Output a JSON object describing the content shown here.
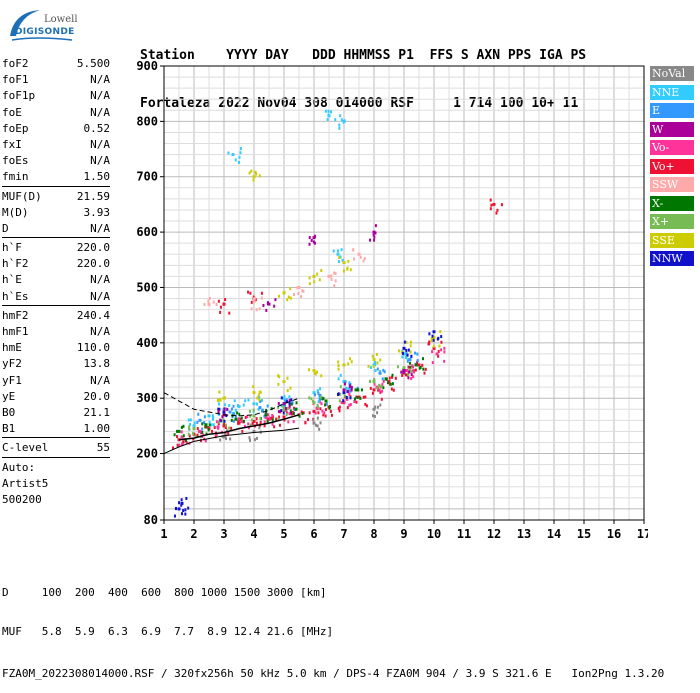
{
  "logo": {
    "top": "Lowell",
    "main": "DIGISONDE"
  },
  "header": {
    "line1": "Station    YYYY DAY   DDD HHMMSS P1  FFS S AXN PPS IGA PS",
    "line2": "Fortaleza 2022 Nov04 308 014000 RSF     1 714 100 10+ 11"
  },
  "params": {
    "group1": [
      {
        "k": "foF2",
        "v": "5.500"
      },
      {
        "k": "foF1",
        "v": "N/A"
      },
      {
        "k": "foF1p",
        "v": "N/A"
      },
      {
        "k": "foE",
        "v": "N/A"
      },
      {
        "k": "foEp",
        "v": "0.52"
      },
      {
        "k": "fxI",
        "v": "N/A"
      },
      {
        "k": "foEs",
        "v": "N/A"
      },
      {
        "k": "fmin",
        "v": "1.50"
      }
    ],
    "group2": [
      {
        "k": "MUF(D)",
        "v": "21.59"
      },
      {
        "k": "M(D)",
        "v": "3.93"
      },
      {
        "k": "D",
        "v": "N/A"
      }
    ],
    "group3": [
      {
        "k": "h`F",
        "v": "220.0"
      },
      {
        "k": "h`F2",
        "v": "220.0"
      },
      {
        "k": "h`E",
        "v": "N/A"
      },
      {
        "k": "h`Es",
        "v": "N/A"
      }
    ],
    "group4": [
      {
        "k": "hmF2",
        "v": "240.4"
      },
      {
        "k": "hmF1",
        "v": "N/A"
      },
      {
        "k": "hmE",
        "v": "110.0"
      },
      {
        "k": "yF2",
        "v": "13.8"
      },
      {
        "k": "yF1",
        "v": "N/A"
      },
      {
        "k": "yE",
        "v": "20.0"
      },
      {
        "k": "B0",
        "v": "21.1"
      },
      {
        "k": "B1",
        "v": "1.00"
      }
    ],
    "group5": [
      {
        "k": "C-level",
        "v": "55"
      }
    ],
    "auto": [
      "Auto:",
      "Artist5",
      "500200"
    ]
  },
  "legend": [
    {
      "label": "NoVal",
      "color": "#888888"
    },
    {
      "label": "NNE",
      "color": "#33ccff"
    },
    {
      "label": "E",
      "color": "#3399ff"
    },
    {
      "label": "W",
      "color": "#aa0099"
    },
    {
      "label": "Vo-",
      "color": "#ff3399"
    },
    {
      "label": "Vo+",
      "color": "#ee1133"
    },
    {
      "label": "SSW",
      "color": "#ffaaaa"
    },
    {
      "label": "X-",
      "color": "#007700"
    },
    {
      "label": "X+",
      "color": "#77bb55"
    },
    {
      "label": "SSE",
      "color": "#cccc00"
    },
    {
      "label": "NNW",
      "color": "#1111cc"
    }
  ],
  "footer": {
    "line1": "D     100  200  400  600  800 1000 1500 3000 [km]",
    "line2": "MUF   5.8  5.9  6.3  6.9  7.7  8.9 12.4 21.6 [MHz]",
    "line3": "FZA0M_2022308014000.RSF / 320fx256h 50 kHz 5.0 km / DPS-4 FZA0M 904 / 3.9 S 321.6 E   Ion2Png 1.3.20"
  },
  "chart_data": {
    "type": "scatter",
    "title": "",
    "xlabel": "",
    "ylabel": "",
    "xlim": [
      1,
      17
    ],
    "ylim": [
      80,
      900
    ],
    "x_ticks": [
      1,
      2,
      3,
      4,
      5,
      6,
      7,
      8,
      9,
      10,
      11,
      12,
      13,
      14,
      15,
      16,
      17
    ],
    "y_ticks": [
      80,
      200,
      300,
      400,
      500,
      600,
      700,
      800,
      900
    ],
    "grid": true,
    "series": [
      {
        "name": "Vo+",
        "color": "#ee1133",
        "points": [
          [
            1.5,
            225
          ],
          [
            2,
            235
          ],
          [
            2.5,
            245
          ],
          [
            3,
            250
          ],
          [
            3.5,
            255
          ],
          [
            4,
            258
          ],
          [
            4.5,
            262
          ],
          [
            5,
            266
          ],
          [
            5.5,
            270
          ],
          [
            6,
            276
          ],
          [
            6.5,
            284
          ],
          [
            7,
            292
          ],
          [
            7.5,
            302
          ],
          [
            8,
            315
          ],
          [
            8.5,
            330
          ],
          [
            9,
            345
          ],
          [
            9.5,
            360
          ],
          [
            10,
            390
          ],
          [
            12,
            650
          ],
          [
            3,
            470
          ],
          [
            4,
            480
          ]
        ]
      },
      {
        "name": "Vo-",
        "color": "#ff3399",
        "points": [
          [
            1.6,
            230
          ],
          [
            2.2,
            240
          ],
          [
            2.8,
            248
          ],
          [
            3.6,
            258
          ],
          [
            4.4,
            265
          ],
          [
            5.2,
            272
          ],
          [
            6.1,
            282
          ],
          [
            7.1,
            298
          ],
          [
            8.1,
            320
          ],
          [
            9.1,
            350
          ],
          [
            10.1,
            380
          ]
        ]
      },
      {
        "name": "NNE",
        "color": "#33ccff",
        "points": [
          [
            2,
            250
          ],
          [
            2.5,
            268
          ],
          [
            3,
            280
          ],
          [
            3.5,
            285
          ],
          [
            4,
            290
          ],
          [
            5,
            300
          ],
          [
            6,
            310
          ],
          [
            7,
            330
          ],
          [
            8,
            360
          ],
          [
            9,
            380
          ],
          [
            6.5,
            810
          ],
          [
            7,
            800
          ],
          [
            6.8,
            560
          ],
          [
            3.3,
            740
          ]
        ]
      },
      {
        "name": "E",
        "color": "#3399ff",
        "points": [
          [
            2.2,
            260
          ],
          [
            3.2,
            275
          ],
          [
            4.2,
            283
          ],
          [
            5.2,
            292
          ],
          [
            6.2,
            305
          ],
          [
            7.2,
            325
          ],
          [
            8.2,
            345
          ],
          [
            9.2,
            370
          ]
        ]
      },
      {
        "name": "X-",
        "color": "#007700",
        "points": [
          [
            1.5,
            240
          ],
          [
            2.4,
            252
          ],
          [
            3.4,
            262
          ],
          [
            4.4,
            270
          ],
          [
            5.4,
            280
          ],
          [
            6.4,
            295
          ],
          [
            7.4,
            315
          ],
          [
            8.4,
            335
          ],
          [
            9.4,
            360
          ]
        ]
      },
      {
        "name": "X+",
        "color": "#77bb55",
        "points": [
          [
            2,
            245
          ],
          [
            3,
            258
          ],
          [
            4,
            268
          ],
          [
            5,
            278
          ],
          [
            6,
            292
          ],
          [
            7,
            310
          ],
          [
            8,
            330
          ],
          [
            9,
            355
          ]
        ]
      },
      {
        "name": "SSE",
        "color": "#cccc00",
        "points": [
          [
            3,
            300
          ],
          [
            4,
            310
          ],
          [
            5,
            330
          ],
          [
            6,
            350
          ],
          [
            7,
            360
          ],
          [
            8,
            370
          ],
          [
            9,
            390
          ],
          [
            10,
            410
          ],
          [
            4,
            700
          ],
          [
            5,
            490
          ],
          [
            6,
            520
          ],
          [
            7,
            545
          ]
        ]
      },
      {
        "name": "NNW",
        "color": "#1111cc",
        "points": [
          [
            1.5,
            100
          ],
          [
            1.6,
            110
          ],
          [
            3,
            275
          ],
          [
            5,
            290
          ],
          [
            7,
            310
          ],
          [
            9,
            390
          ],
          [
            10,
            420
          ]
        ]
      },
      {
        "name": "W",
        "color": "#aa0099",
        "points": [
          [
            3,
            270
          ],
          [
            5,
            290
          ],
          [
            7,
            315
          ],
          [
            9,
            350
          ],
          [
            4.5,
            470
          ],
          [
            6,
            590
          ],
          [
            8,
            600
          ]
        ]
      },
      {
        "name": "SSW",
        "color": "#ffaaaa",
        "points": [
          [
            2.5,
            470
          ],
          [
            4,
            475
          ],
          [
            5.5,
            500
          ],
          [
            6.5,
            520
          ],
          [
            7.5,
            560
          ]
        ]
      },
      {
        "name": "NoVal",
        "color": "#888888",
        "points": [
          [
            3,
            230
          ],
          [
            4,
            240
          ],
          [
            6,
            255
          ],
          [
            8,
            280
          ]
        ]
      }
    ],
    "profile_curves": {
      "solid": [
        [
          1.0,
          200
        ],
        [
          1.5,
          212
        ],
        [
          2,
          222
        ],
        [
          3,
          232
        ],
        [
          4,
          238
        ],
        [
          5,
          242
        ],
        [
          5.5,
          246
        ]
      ],
      "dashed": [
        [
          1.0,
          310
        ],
        [
          1.5,
          295
        ],
        [
          2.0,
          280
        ],
        [
          2.5,
          275
        ],
        [
          3,
          270
        ],
        [
          3.5,
          268
        ],
        [
          4,
          270
        ],
        [
          4.5,
          278
        ],
        [
          5,
          290
        ],
        [
          5.5,
          300
        ]
      ],
      "trace": [
        [
          1.5,
          225
        ],
        [
          2,
          228
        ],
        [
          2.5,
          235
        ],
        [
          3,
          238
        ],
        [
          3.5,
          245
        ],
        [
          4,
          250
        ],
        [
          4.5,
          255
        ],
        [
          5,
          262
        ],
        [
          5.5,
          270
        ]
      ]
    }
  }
}
